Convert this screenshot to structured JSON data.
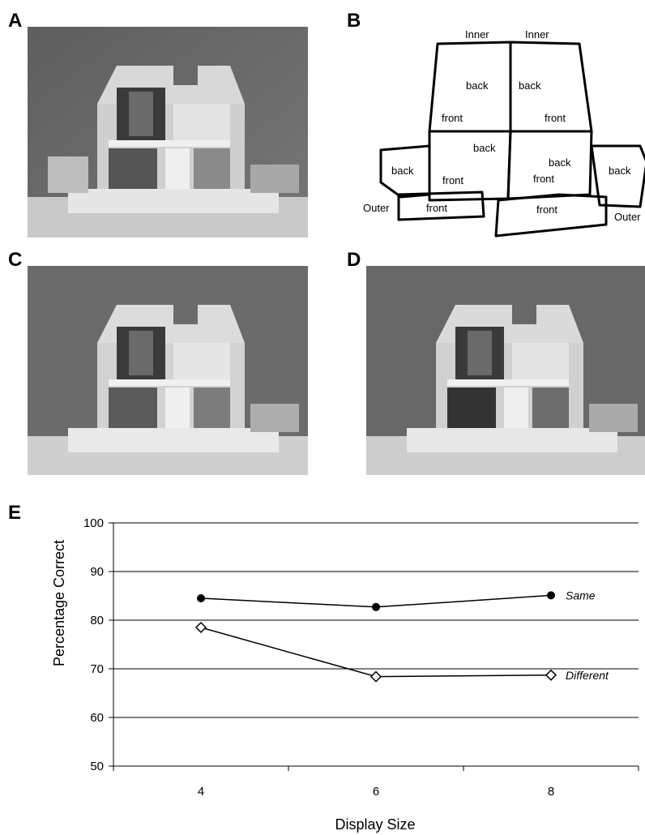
{
  "panels": {
    "a": "A",
    "b": "B",
    "c": "C",
    "d": "D",
    "e": "E"
  },
  "diagram": {
    "inner_left": "Inner",
    "inner_right": "Inner",
    "outer_left": "Outer",
    "outer_right": "Outer",
    "upper_left_back": "back",
    "upper_left_front": "front",
    "upper_right_back": "back",
    "upper_right_front": "front",
    "lower_left_back": "back",
    "lower_left_front": "front",
    "lower_right_back": "back",
    "lower_right_front": "front",
    "side_left_back": "back",
    "side_right_back": "back",
    "porch_left_front": "front",
    "porch_right_front": "front"
  },
  "chart_data": {
    "type": "line",
    "x": [
      4,
      6,
      8
    ],
    "xlabel": "Display Size",
    "ylabel": "Percentage Correct",
    "ylim": [
      50,
      100
    ],
    "yticks": [
      50,
      60,
      70,
      80,
      90,
      100
    ],
    "xticks": [
      "4",
      "6",
      "8"
    ],
    "grid": true,
    "series": [
      {
        "name": "Same",
        "values": [
          84.5,
          82.7,
          85.1
        ],
        "marker": "filled-circle",
        "color": "#000000"
      },
      {
        "name": "Different",
        "values": [
          78.5,
          68.4,
          68.7
        ],
        "marker": "open-diamond",
        "color": "#000000"
      }
    ]
  }
}
